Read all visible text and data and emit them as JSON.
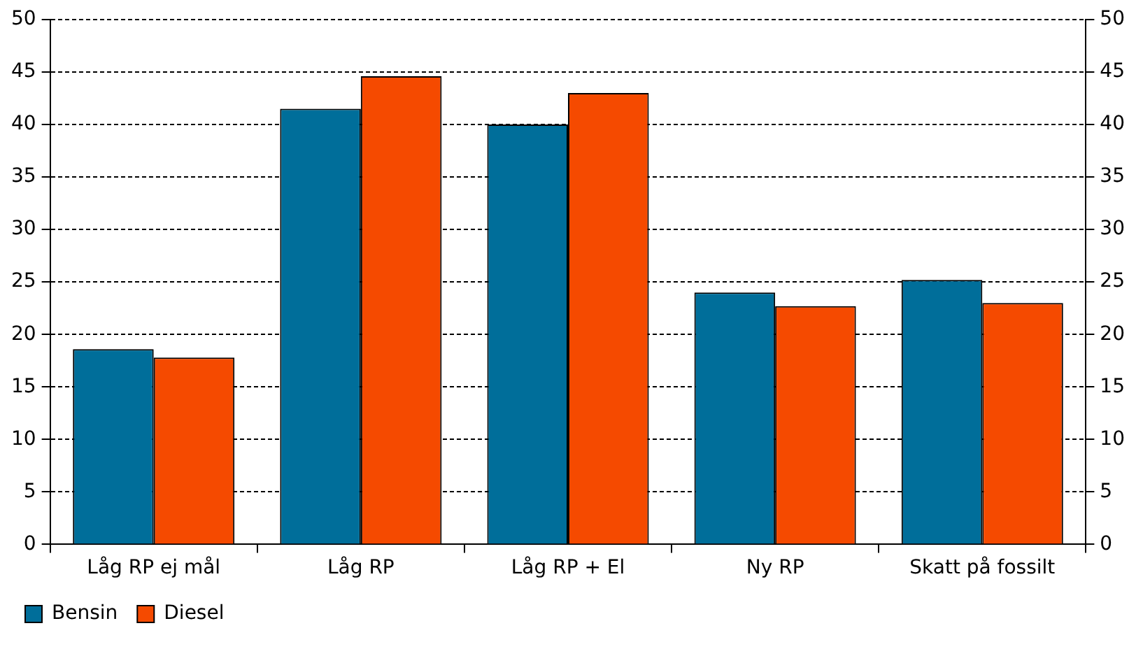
{
  "chart_data": {
    "type": "bar",
    "categories": [
      "Låg RP ej mål",
      "Låg RP",
      "Låg RP + El",
      "Ny RP",
      "Skatt på fossilt"
    ],
    "series": [
      {
        "name": "Bensin",
        "color": "#006e9a",
        "values": [
          18.6,
          41.5,
          40.0,
          24.0,
          25.2
        ]
      },
      {
        "name": "Diesel",
        "color": "#f54a00",
        "values": [
          17.8,
          44.6,
          43.0,
          22.7,
          23.0
        ]
      }
    ],
    "ylim": [
      0,
      50
    ],
    "yticks": [
      0,
      5,
      10,
      15,
      20,
      25,
      30,
      35,
      40,
      45,
      50
    ],
    "y2lim": [
      0,
      50
    ],
    "y2ticks": [
      0,
      5,
      10,
      15,
      20,
      25,
      30,
      35,
      40,
      45,
      50
    ],
    "grid": "y",
    "legend": "bottom left"
  }
}
